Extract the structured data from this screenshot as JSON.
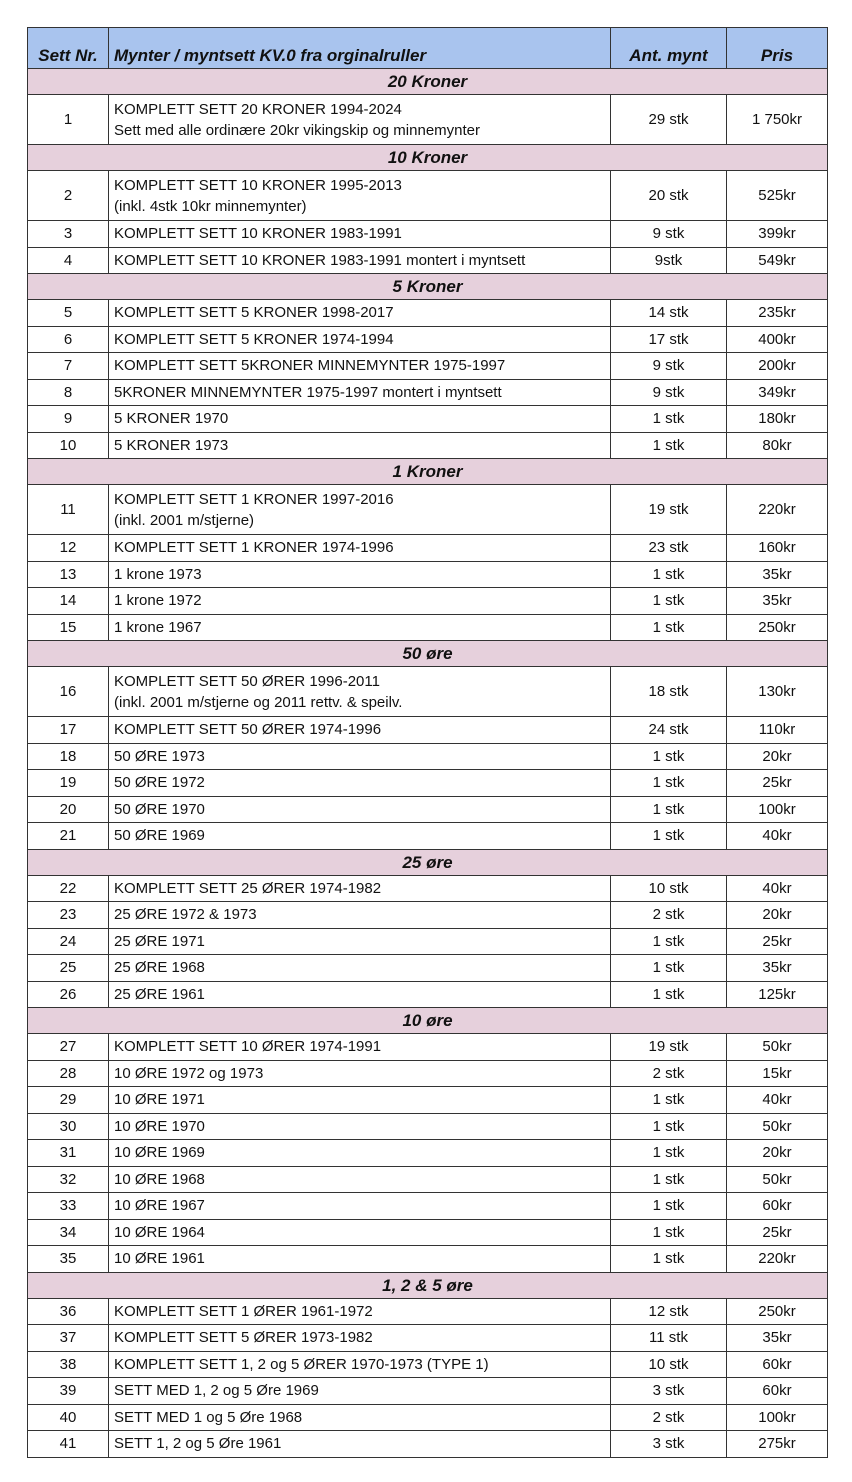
{
  "header": {
    "nr": "Sett Nr.",
    "desc": "Mynter / myntsett KV.0 fra orginalruller",
    "qty": "Ant. mynt",
    "price": "Pris"
  },
  "colors": {
    "header_bg": "#a9c4ee",
    "section_bg": "#e6d0dc"
  },
  "sections": [
    {
      "title": "20 Kroner",
      "rows": [
        {
          "nr": "1",
          "lines": [
            "KOMPLETT SETT 20 KRONER 1994-2024",
            "Sett med alle ordinære 20kr vikingskip og minnemynter"
          ],
          "qty": "29 stk",
          "price": "1 750kr"
        }
      ]
    },
    {
      "title": "10 Kroner",
      "rows": [
        {
          "nr": "2",
          "lines": [
            "KOMPLETT SETT 10 KRONER 1995-2013",
            "(inkl. 4stk 10kr minnemynter)"
          ],
          "qty": "20 stk",
          "price": "525kr"
        },
        {
          "nr": "3",
          "lines": [
            "KOMPLETT SETT 10 KRONER 1983-1991"
          ],
          "qty": "9 stk",
          "price": "399kr"
        },
        {
          "nr": "4",
          "lines": [
            "KOMPLETT SETT 10 KRONER 1983-1991 montert i myntsett"
          ],
          "qty": "9stk",
          "price": "549kr"
        }
      ]
    },
    {
      "title": "5 Kroner",
      "rows": [
        {
          "nr": "5",
          "lines": [
            "KOMPLETT SETT 5 KRONER 1998-2017"
          ],
          "qty": "14 stk",
          "price": "235kr"
        },
        {
          "nr": "6",
          "lines": [
            "KOMPLETT SETT 5 KRONER 1974-1994"
          ],
          "qty": "17 stk",
          "price": "400kr"
        },
        {
          "nr": "7",
          "lines": [
            "KOMPLETT SETT 5KRONER MINNEMYNTER 1975-1997"
          ],
          "qty": "9 stk",
          "price": "200kr"
        },
        {
          "nr": "8",
          "lines": [
            "5KRONER MINNEMYNTER 1975-1997 montert i myntsett"
          ],
          "qty": "9 stk",
          "price": "349kr"
        },
        {
          "nr": "9",
          "lines": [
            "5 KRONER 1970"
          ],
          "qty": "1 stk",
          "price": "180kr"
        },
        {
          "nr": "10",
          "lines": [
            "5 KRONER 1973"
          ],
          "qty": "1 stk",
          "price": "80kr"
        }
      ]
    },
    {
      "title": "1 Kroner",
      "rows": [
        {
          "nr": "11",
          "lines": [
            "KOMPLETT SETT 1 KRONER 1997-2016",
            "(inkl. 2001 m/stjerne)"
          ],
          "qty": "19 stk",
          "price": "220kr"
        },
        {
          "nr": "12",
          "lines": [
            "KOMPLETT SETT 1 KRONER 1974-1996"
          ],
          "qty": "23 stk",
          "price": "160kr"
        },
        {
          "nr": "13",
          "lines": [
            "1 krone 1973"
          ],
          "qty": "1 stk",
          "price": "35kr"
        },
        {
          "nr": "14",
          "lines": [
            "1 krone 1972"
          ],
          "qty": "1 stk",
          "price": "35kr"
        },
        {
          "nr": "15",
          "lines": [
            "1 krone 1967"
          ],
          "qty": "1 stk",
          "price": "250kr"
        }
      ]
    },
    {
      "title": "50 øre",
      "rows": [
        {
          "nr": "16",
          "lines": [
            "KOMPLETT SETT 50  ØRER 1996-2011",
            "(inkl. 2001 m/stjerne og 2011 rettv. & speilv."
          ],
          "qty": "18 stk",
          "price": "130kr"
        },
        {
          "nr": "17",
          "lines": [
            "KOMPLETT SETT 50 ØRER 1974-1996"
          ],
          "qty": "24 stk",
          "price": "110kr"
        },
        {
          "nr": "18",
          "lines": [
            "50 ØRE 1973"
          ],
          "qty": "1 stk",
          "price": "20kr"
        },
        {
          "nr": "19",
          "lines": [
            "50 ØRE 1972"
          ],
          "qty": "1 stk",
          "price": "25kr"
        },
        {
          "nr": "20",
          "lines": [
            "50 ØRE 1970"
          ],
          "qty": "1 stk",
          "price": "100kr"
        },
        {
          "nr": "21",
          "lines": [
            "50 ØRE 1969"
          ],
          "qty": "1 stk",
          "price": "40kr"
        }
      ]
    },
    {
      "title": "25 øre",
      "rows": [
        {
          "nr": "22",
          "lines": [
            "KOMPLETT SETT 25 ØRER 1974-1982"
          ],
          "qty": "10 stk",
          "price": "40kr"
        },
        {
          "nr": "23",
          "lines": [
            "25 ØRE 1972 & 1973"
          ],
          "qty": "2 stk",
          "price": "20kr"
        },
        {
          "nr": "24",
          "lines": [
            "25 ØRE 1971"
          ],
          "qty": "1 stk",
          "price": "25kr"
        },
        {
          "nr": "25",
          "lines": [
            "25 ØRE 1968"
          ],
          "qty": "1 stk",
          "price": "35kr"
        },
        {
          "nr": "26",
          "lines": [
            "25 ØRE 1961"
          ],
          "qty": "1 stk",
          "price": "125kr"
        }
      ]
    },
    {
      "title": "10 øre",
      "rows": [
        {
          "nr": "27",
          "lines": [
            "KOMPLETT SETT 10 ØRER 1974-1991"
          ],
          "qty": "19 stk",
          "price": "50kr"
        },
        {
          "nr": "28",
          "lines": [
            "10 ØRE 1972 og 1973"
          ],
          "qty": "2 stk",
          "price": "15kr"
        },
        {
          "nr": "29",
          "lines": [
            "10 ØRE 1971"
          ],
          "qty": "1 stk",
          "price": "40kr"
        },
        {
          "nr": "30",
          "lines": [
            "10 ØRE 1970"
          ],
          "qty": "1 stk",
          "price": "50kr"
        },
        {
          "nr": "31",
          "lines": [
            "10 ØRE 1969"
          ],
          "qty": "1 stk",
          "price": "20kr"
        },
        {
          "nr": "32",
          "lines": [
            "10 ØRE 1968"
          ],
          "qty": "1 stk",
          "price": "50kr"
        },
        {
          "nr": "33",
          "lines": [
            "10 ØRE 1967"
          ],
          "qty": "1 stk",
          "price": "60kr"
        },
        {
          "nr": "34",
          "lines": [
            "10 ØRE 1964"
          ],
          "qty": "1 stk",
          "price": "25kr"
        },
        {
          "nr": "35",
          "lines": [
            "10 ØRE 1961"
          ],
          "qty": "1 stk",
          "price": "220kr"
        }
      ]
    },
    {
      "title": "1, 2 & 5 øre",
      "rows": [
        {
          "nr": "36",
          "lines": [
            "KOMPLETT SETT 1 ØRER 1961-1972"
          ],
          "qty": "12 stk",
          "price": "250kr"
        },
        {
          "nr": "37",
          "lines": [
            "KOMPLETT SETT 5 ØRER 1973-1982"
          ],
          "qty": "11 stk",
          "price": "35kr"
        },
        {
          "nr": "38",
          "lines": [
            "KOMPLETT SETT 1, 2 og 5 ØRER 1970-1973 (TYPE 1)"
          ],
          "qty": "10 stk",
          "price": "60kr"
        },
        {
          "nr": "39",
          "lines": [
            "SETT  MED 1, 2 og 5 Øre 1969"
          ],
          "qty": "3 stk",
          "price": "60kr"
        },
        {
          "nr": "40",
          "lines": [
            "SETT MED  1 og 5 Øre 1968"
          ],
          "qty": "2 stk",
          "price": "100kr"
        },
        {
          "nr": "41",
          "lines": [
            "SETT 1, 2 og 5 Øre 1961"
          ],
          "qty": "3 stk",
          "price": "275kr"
        }
      ]
    }
  ]
}
